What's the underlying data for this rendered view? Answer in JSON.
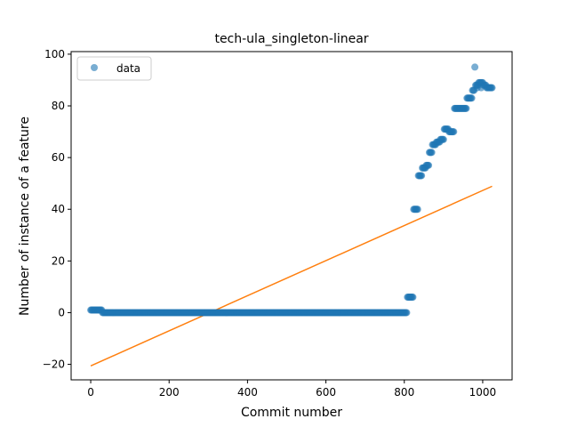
{
  "chart_data": {
    "type": "scatter",
    "title": "tech-ula_singleton-linear",
    "xlabel": "Commit number",
    "ylabel": "Number of instance of a feature",
    "xlim": [
      -50,
      1075
    ],
    "ylim": [
      -26,
      101
    ],
    "xticks": [
      0,
      200,
      400,
      600,
      800,
      1000
    ],
    "xtick_labels": [
      "0",
      "200",
      "400",
      "600",
      "800",
      "1000"
    ],
    "yticks": [
      -20,
      0,
      20,
      40,
      60,
      80,
      100
    ],
    "ytick_labels": [
      "−20",
      "0",
      "20",
      "40",
      "60",
      "80",
      "100"
    ],
    "grid": false,
    "legend": {
      "position": "top-left",
      "entries": [
        "data"
      ]
    },
    "colors": {
      "data": "#1f77b4",
      "fit": "#ff7f0e"
    },
    "series": [
      {
        "name": "data",
        "kind": "scatter",
        "segments": [
          {
            "x_start": 0,
            "x_end": 28,
            "step": 2,
            "y": 1
          },
          {
            "x_start": 30,
            "x_end": 806,
            "step": 2,
            "y": 0
          },
          {
            "x_start": 808,
            "x_end": 822,
            "step": 2,
            "y": 6
          },
          {
            "x_start": 824,
            "x_end": 834,
            "step": 2,
            "y": 40
          },
          {
            "x_start": 836,
            "x_end": 844,
            "step": 2,
            "y": 53
          },
          {
            "x_start": 846,
            "x_end": 854,
            "step": 2,
            "y": 56
          },
          {
            "x_start": 856,
            "x_end": 862,
            "step": 2,
            "y": 57
          },
          {
            "x_start": 864,
            "x_end": 870,
            "step": 2,
            "y": 62
          },
          {
            "x_start": 872,
            "x_end": 880,
            "step": 2,
            "y": 65
          },
          {
            "x_start": 882,
            "x_end": 890,
            "step": 2,
            "y": 66
          },
          {
            "x_start": 892,
            "x_end": 900,
            "step": 2,
            "y": 67
          },
          {
            "x_start": 902,
            "x_end": 912,
            "step": 2,
            "y": 71
          },
          {
            "x_start": 914,
            "x_end": 926,
            "step": 2,
            "y": 70
          },
          {
            "x_start": 928,
            "x_end": 958,
            "step": 2,
            "y": 79
          },
          {
            "x_start": 960,
            "x_end": 972,
            "step": 2,
            "y": 83
          },
          {
            "x_start": 974,
            "x_end": 978,
            "step": 2,
            "y": 86
          },
          {
            "x_start": 982,
            "x_end": 988,
            "step": 2,
            "y": 88
          },
          {
            "x_start": 990,
            "x_end": 1000,
            "step": 2,
            "y": 89
          },
          {
            "x_start": 1002,
            "x_end": 1008,
            "step": 2,
            "y": 88
          },
          {
            "x_start": 1010,
            "x_end": 1024,
            "step": 2,
            "y": 87
          }
        ],
        "extra_points": [
          {
            "x": 980,
            "y": 95
          },
          {
            "x": 986,
            "y": 87
          },
          {
            "x": 996,
            "y": 87
          }
        ]
      },
      {
        "name": "",
        "kind": "line",
        "x": [
          0,
          1024
        ],
        "y": [
          -20.6,
          48.9
        ]
      }
    ]
  }
}
